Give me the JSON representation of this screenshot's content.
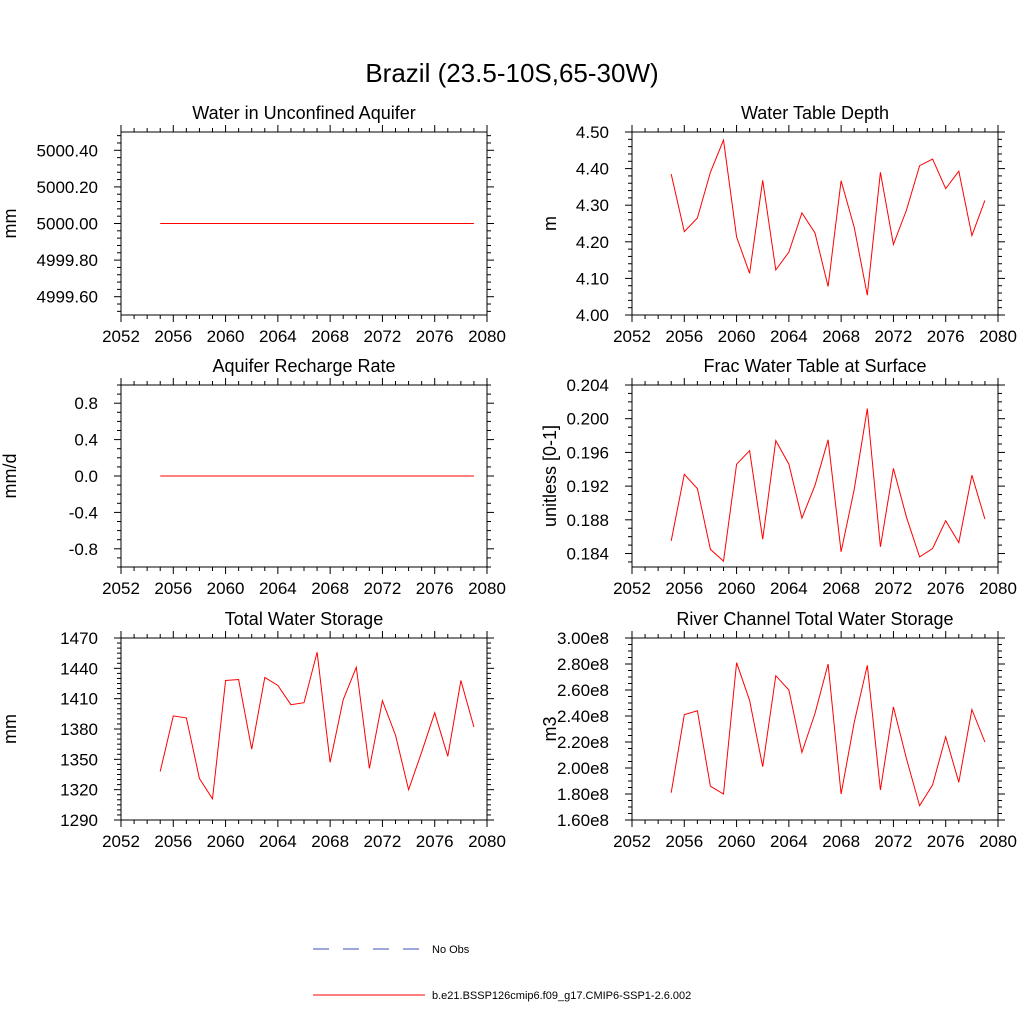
{
  "figure": {
    "title": "Brazil (23.5-10S,65-30W)"
  },
  "colors": {
    "series": "#ff0000",
    "obs": "#3b4fb8",
    "axes": "#000000"
  },
  "chart_data": [
    {
      "type": "line",
      "title": "Water in Unconfined Aquifer",
      "xlabel": "",
      "ylabel": "mm",
      "xlim": [
        2052,
        2080
      ],
      "ylim": [
        4999.5,
        5000.5
      ],
      "xticks": [
        2052,
        2056,
        2060,
        2064,
        2068,
        2072,
        2076,
        2080
      ],
      "yticks": [
        4999.6,
        4999.8,
        5000.0,
        5000.2,
        5000.4
      ],
      "ytick_labels": [
        "4999.60",
        "4999.80",
        "5000.00",
        "5000.20",
        "5000.40"
      ],
      "grid": false,
      "x": [
        2055,
        2056,
        2057,
        2058,
        2059,
        2060,
        2061,
        2062,
        2063,
        2064,
        2065,
        2066,
        2067,
        2068,
        2069,
        2070,
        2071,
        2072,
        2073,
        2074,
        2075,
        2076,
        2077,
        2078,
        2079
      ],
      "series": [
        {
          "name": "b.e21.BSSP126cmip6.f09_g17.CMIP6-SSP1-2.6.002",
          "values": [
            5000,
            5000,
            5000,
            5000,
            5000,
            5000,
            5000,
            5000,
            5000,
            5000,
            5000,
            5000,
            5000,
            5000,
            5000,
            5000,
            5000,
            5000,
            5000,
            5000,
            5000,
            5000,
            5000,
            5000,
            5000
          ]
        }
      ]
    },
    {
      "type": "line",
      "title": "Water Table Depth",
      "xlabel": "",
      "ylabel": "m",
      "xlim": [
        2052,
        2080
      ],
      "ylim": [
        4.0,
        4.5
      ],
      "xticks": [
        2052,
        2056,
        2060,
        2064,
        2068,
        2072,
        2076,
        2080
      ],
      "yticks": [
        4.0,
        4.1,
        4.2,
        4.3,
        4.4,
        4.5
      ],
      "ytick_labels": [
        "4.00",
        "4.10",
        "4.20",
        "4.30",
        "4.40",
        "4.50"
      ],
      "grid": false,
      "x": [
        2055,
        2056,
        2057,
        2058,
        2059,
        2060,
        2061,
        2062,
        2063,
        2064,
        2065,
        2066,
        2067,
        2068,
        2069,
        2070,
        2071,
        2072,
        2073,
        2074,
        2075,
        2076,
        2077,
        2078,
        2079
      ],
      "series": [
        {
          "name": "b.e21.BSSP126cmip6.f09_g17.CMIP6-SSP1-2.6.002",
          "values": [
            4.385,
            4.228,
            4.265,
            4.39,
            4.478,
            4.213,
            4.114,
            4.368,
            4.123,
            4.172,
            4.279,
            4.224,
            4.078,
            4.367,
            4.24,
            4.054,
            4.39,
            4.193,
            4.287,
            4.408,
            4.426,
            4.345,
            4.393,
            4.217,
            4.313
          ]
        }
      ]
    },
    {
      "type": "line",
      "title": "Aquifer Recharge Rate",
      "xlabel": "",
      "ylabel": "mm/d",
      "xlim": [
        2052,
        2080
      ],
      "ylim": [
        -1.0,
        1.0
      ],
      "xticks": [
        2052,
        2056,
        2060,
        2064,
        2068,
        2072,
        2076,
        2080
      ],
      "yticks": [
        -0.8,
        -0.4,
        0.0,
        0.4,
        0.8
      ],
      "ytick_labels": [
        "-0.8",
        "-0.4",
        "0.0",
        "0.4",
        "0.8"
      ],
      "grid": false,
      "x": [
        2055,
        2056,
        2057,
        2058,
        2059,
        2060,
        2061,
        2062,
        2063,
        2064,
        2065,
        2066,
        2067,
        2068,
        2069,
        2070,
        2071,
        2072,
        2073,
        2074,
        2075,
        2076,
        2077,
        2078,
        2079
      ],
      "series": [
        {
          "name": "b.e21.BSSP126cmip6.f09_g17.CMIP6-SSP1-2.6.002",
          "values": [
            0,
            0,
            0,
            0,
            0,
            0,
            0,
            0,
            0,
            0,
            0,
            0,
            0,
            0,
            0,
            0,
            0,
            0,
            0,
            0,
            0,
            0,
            0,
            0,
            0
          ]
        }
      ]
    },
    {
      "type": "line",
      "title": "Frac Water Table at Surface",
      "xlabel": "",
      "ylabel": "unitless [0-1]",
      "xlim": [
        2052,
        2080
      ],
      "ylim": [
        0.1824,
        0.204
      ],
      "xticks": [
        2052,
        2056,
        2060,
        2064,
        2068,
        2072,
        2076,
        2080
      ],
      "yticks": [
        0.184,
        0.188,
        0.192,
        0.196,
        0.2,
        0.204
      ],
      "ytick_labels": [
        "0.184",
        "0.188",
        "0.192",
        "0.196",
        "0.200",
        "0.204"
      ],
      "grid": false,
      "x": [
        2055,
        2056,
        2057,
        2058,
        2059,
        2060,
        2061,
        2062,
        2063,
        2064,
        2065,
        2066,
        2067,
        2068,
        2069,
        2070,
        2071,
        2072,
        2073,
        2074,
        2075,
        2076,
        2077,
        2078,
        2079
      ],
      "series": [
        {
          "name": "b.e21.BSSP126cmip6.f09_g17.CMIP6-SSP1-2.6.002",
          "values": [
            0.1855,
            0.1934,
            0.1917,
            0.1845,
            0.1831,
            0.1946,
            0.1962,
            0.1857,
            0.1974,
            0.1946,
            0.1882,
            0.1921,
            0.1975,
            0.1842,
            0.1916,
            0.2012,
            0.1848,
            0.1941,
            0.1883,
            0.1836,
            0.1846,
            0.1879,
            0.1853,
            0.1933,
            0.1881
          ]
        }
      ]
    },
    {
      "type": "line",
      "title": "Total Water Storage",
      "xlabel": "",
      "ylabel": "mm",
      "xlim": [
        2052,
        2080
      ],
      "ylim": [
        1290,
        1470
      ],
      "xticks": [
        2052,
        2056,
        2060,
        2064,
        2068,
        2072,
        2076,
        2080
      ],
      "yticks": [
        1290,
        1320,
        1350,
        1380,
        1410,
        1440,
        1470
      ],
      "ytick_labels": [
        "1290",
        "1320",
        "1350",
        "1380",
        "1410",
        "1440",
        "1470"
      ],
      "grid": false,
      "x": [
        2055,
        2056,
        2057,
        2058,
        2059,
        2060,
        2061,
        2062,
        2063,
        2064,
        2065,
        2066,
        2067,
        2068,
        2069,
        2070,
        2071,
        2072,
        2073,
        2074,
        2075,
        2076,
        2077,
        2078,
        2079
      ],
      "series": [
        {
          "name": "b.e21.BSSP126cmip6.f09_g17.CMIP6-SSP1-2.6.002",
          "values": [
            1338,
            1393,
            1391,
            1331,
            1311,
            1428,
            1429,
            1360,
            1431,
            1423,
            1404,
            1406,
            1456,
            1347,
            1409,
            1441,
            1341,
            1408,
            1374,
            1320,
            1357,
            1396,
            1353,
            1428,
            1382
          ]
        }
      ]
    },
    {
      "type": "line",
      "title": "River Channel Total Water Storage",
      "xlabel": "",
      "ylabel": "m3",
      "xlim": [
        2052,
        2080
      ],
      "ylim": [
        160000000,
        300000000
      ],
      "xticks": [
        2052,
        2056,
        2060,
        2064,
        2068,
        2072,
        2076,
        2080
      ],
      "yticks": [
        160000000,
        180000000,
        200000000,
        220000000,
        240000000,
        260000000,
        280000000,
        300000000
      ],
      "ytick_labels": [
        "1.60e8",
        "1.80e8",
        "2.00e8",
        "2.20e8",
        "2.40e8",
        "2.60e8",
        "2.80e8",
        "3.00e8"
      ],
      "grid": false,
      "x": [
        2055,
        2056,
        2057,
        2058,
        2059,
        2060,
        2061,
        2062,
        2063,
        2064,
        2065,
        2066,
        2067,
        2068,
        2069,
        2070,
        2071,
        2072,
        2073,
        2074,
        2075,
        2076,
        2077,
        2078,
        2079
      ],
      "series": [
        {
          "name": "b.e21.BSSP126cmip6.f09_g17.CMIP6-SSP1-2.6.002",
          "values": [
            181000000,
            241000000,
            244000000,
            186000000,
            180000000,
            281000000,
            252000000,
            201000000,
            271000000,
            260000000,
            212000000,
            242000000,
            280000000,
            180000000,
            235000000,
            279000000,
            183000000,
            247000000,
            207000000,
            171000000,
            187000000,
            224000000,
            189000000,
            245000000,
            220000000
          ]
        }
      ]
    }
  ],
  "legend": {
    "items": [
      {
        "label": "No Obs",
        "style": "dashed",
        "color": "#3b4fb8"
      },
      {
        "label": "b.e21.BSSP126cmip6.f09_g17.CMIP6-SSP1-2.6.002",
        "style": "solid",
        "color": "#ff0000"
      }
    ]
  }
}
